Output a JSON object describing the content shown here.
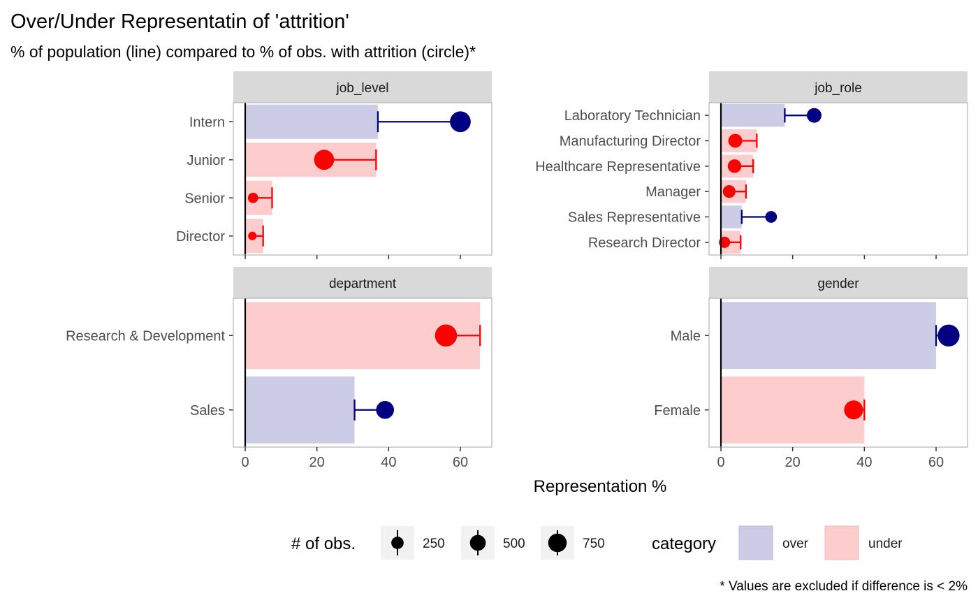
{
  "chart_data": {
    "type": "bar",
    "title": "Over/Under Representatin of 'attrition'",
    "subtitle": "% of population (line) compared to % of obs. with attrition (circle)*",
    "xlabel": "Representation %",
    "xlim": [
      0,
      68
    ],
    "x_ticks": [
      "0",
      "20",
      "40",
      "60"
    ],
    "grid": false,
    "caption": "* Values are excluded if difference is < 2%",
    "colors": {
      "over_fill": "#CCCCE6",
      "under_fill": "#FDCCCC",
      "over_point": "#000080",
      "under_point": "#FF0000"
    },
    "panels": [
      {
        "name": "job_level",
        "categories": [
          "Intern",
          "Junior",
          "Senior",
          "Director"
        ],
        "population_pct": [
          37,
          36.5,
          7.5,
          5
        ],
        "attrition_pct": [
          60,
          22,
          2.2,
          2
        ],
        "n_obs": [
          880,
          800,
          120,
          60
        ],
        "category": [
          "over",
          "under",
          "under",
          "under"
        ]
      },
      {
        "name": "job_role",
        "categories": [
          "Laboratory Technician",
          "Manufacturing Director",
          "Healthcare Representative",
          "Manager",
          "Sales Representative",
          "Research Director"
        ],
        "population_pct": [
          17.8,
          10,
          9,
          7,
          5.8,
          5.5
        ],
        "attrition_pct": [
          26,
          4,
          3.8,
          2.3,
          14,
          1
        ],
        "n_obs": [
          350,
          300,
          280,
          230,
          180,
          160
        ],
        "category": [
          "over",
          "under",
          "under",
          "under",
          "over",
          "under"
        ]
      },
      {
        "name": "department",
        "categories": [
          "Research & Development",
          "Sales"
        ],
        "population_pct": [
          65.5,
          30.5
        ],
        "attrition_pct": [
          56,
          39
        ],
        "n_obs": [
          1020,
          600
        ],
        "category": [
          "under",
          "over"
        ]
      },
      {
        "name": "gender",
        "categories": [
          "Male",
          "Female"
        ],
        "population_pct": [
          60,
          40
        ],
        "attrition_pct": [
          63.5,
          37
        ],
        "n_obs": [
          1000,
          700
        ],
        "category": [
          "over",
          "under"
        ]
      }
    ],
    "legend": {
      "size_title": "# of obs.",
      "size_items": [
        "250",
        "500",
        "750"
      ],
      "size_values": [
        250,
        500,
        750
      ],
      "category_title": "category",
      "category_items": [
        "over",
        "under"
      ],
      "position": "bottom"
    }
  }
}
